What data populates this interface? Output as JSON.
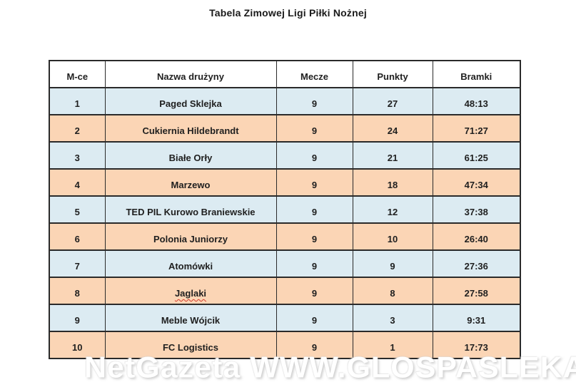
{
  "title": "Tabela Zimowej Ligi Piłki Nożnej",
  "table": {
    "headers": [
      "M-ce",
      "Nazwa drużyny",
      "Mecze",
      "Punkty",
      "Bramki"
    ],
    "rows": [
      {
        "place": "1",
        "team": "Paged Sklejka",
        "matches": "9",
        "points": "27",
        "goals": "48:13"
      },
      {
        "place": "2",
        "team": "Cukiernia Hildebrandt",
        "matches": "9",
        "points": "24",
        "goals": "71:27"
      },
      {
        "place": "3",
        "team": "Białe Orły",
        "matches": "9",
        "points": "21",
        "goals": "61:25"
      },
      {
        "place": "4",
        "team": "Marzewo",
        "matches": "9",
        "points": "18",
        "goals": "47:34"
      },
      {
        "place": "5",
        "team": "TED PIL Kurowo Braniewskie",
        "matches": "9",
        "points": "12",
        "goals": "37:38"
      },
      {
        "place": "6",
        "team": "Polonia Juniorzy",
        "matches": "9",
        "points": "10",
        "goals": "26:40"
      },
      {
        "place": "7",
        "team": "Atomówki",
        "matches": "9",
        "points": "9",
        "goals": "27:36"
      },
      {
        "place": "8",
        "team": "Jaglaki",
        "matches": "9",
        "points": "8",
        "goals": "27:58",
        "misspelled": true
      },
      {
        "place": "9",
        "team": "Meble Wójcik",
        "matches": "9",
        "points": "3",
        "goals": "9:31"
      },
      {
        "place": "10",
        "team": "FC Logistics",
        "matches": "9",
        "points": "1",
        "goals": "17:73"
      }
    ]
  },
  "watermark": "NetGazeta WWW.GLOSPASLEKA.PL",
  "colors": {
    "row_blue": "#dcebf2",
    "row_peach": "#fbd5b5",
    "header_bg": "#ffffff",
    "border": "#2a2a2a",
    "spellcheck_red": "#d43c2c"
  }
}
